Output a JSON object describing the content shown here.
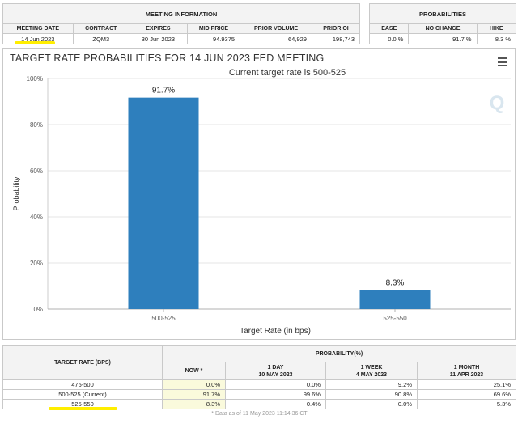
{
  "meeting": {
    "title": "MEETING INFORMATION",
    "columns": [
      "MEETING DATE",
      "CONTRACT",
      "EXPIRES",
      "MID PRICE",
      "PRIOR VOLUME",
      "PRIOR OI"
    ],
    "row": [
      "14 Jun 2023",
      "ZQM3",
      "30 Jun 2023",
      "94.9375",
      "64,929",
      "198,743"
    ]
  },
  "probabilities": {
    "title": "PROBABILITIES",
    "columns": [
      "EASE",
      "NO CHANGE",
      "HIKE"
    ],
    "row": [
      "0.0 %",
      "91.7 %",
      "8.3 %"
    ]
  },
  "chart": {
    "menu_icon": "hamburger-menu-icon",
    "watermark_icon": "q-logo-icon",
    "accent": "#2e7fbd"
  },
  "chart_data": {
    "type": "bar",
    "title": "TARGET RATE PROBABILITIES FOR 14 JUN 2023 FED MEETING",
    "subtitle": "Current target rate is 500-525",
    "xlabel": "Target Rate (in bps)",
    "ylabel": "Probability",
    "categories": [
      "500-525",
      "525-550"
    ],
    "values": [
      91.7,
      8.3
    ],
    "data_labels": [
      "91.7%",
      "8.3%"
    ],
    "ylim": [
      0,
      100
    ],
    "yticks": [
      0,
      20,
      40,
      60,
      80,
      100
    ],
    "ytick_labels": [
      "0%",
      "20%",
      "40%",
      "60%",
      "80%",
      "100%"
    ],
    "grid": true,
    "color": "#2e7fbd"
  },
  "rates": {
    "head_target": "TARGET RATE (BPS)",
    "head_prob": "PROBABILITY(%)",
    "cols": [
      {
        "l1": "NOW *",
        "l2": ""
      },
      {
        "l1": "1 DAY",
        "l2": "10 MAY 2023"
      },
      {
        "l1": "1 WEEK",
        "l2": "4 MAY 2023"
      },
      {
        "l1": "1 MONTH",
        "l2": "11 APR 2023"
      }
    ],
    "rows": [
      [
        "475-500",
        "0.0%",
        "0.0%",
        "9.2%",
        "25.1%"
      ],
      [
        "500-525 (Current)",
        "91.7%",
        "99.6%",
        "90.8%",
        "69.6%"
      ],
      [
        "525-550",
        "8.3%",
        "0.4%",
        "0.0%",
        "5.3%"
      ]
    ],
    "footnote": "* Data as of 11 May 2023 11:14:36 CT"
  }
}
